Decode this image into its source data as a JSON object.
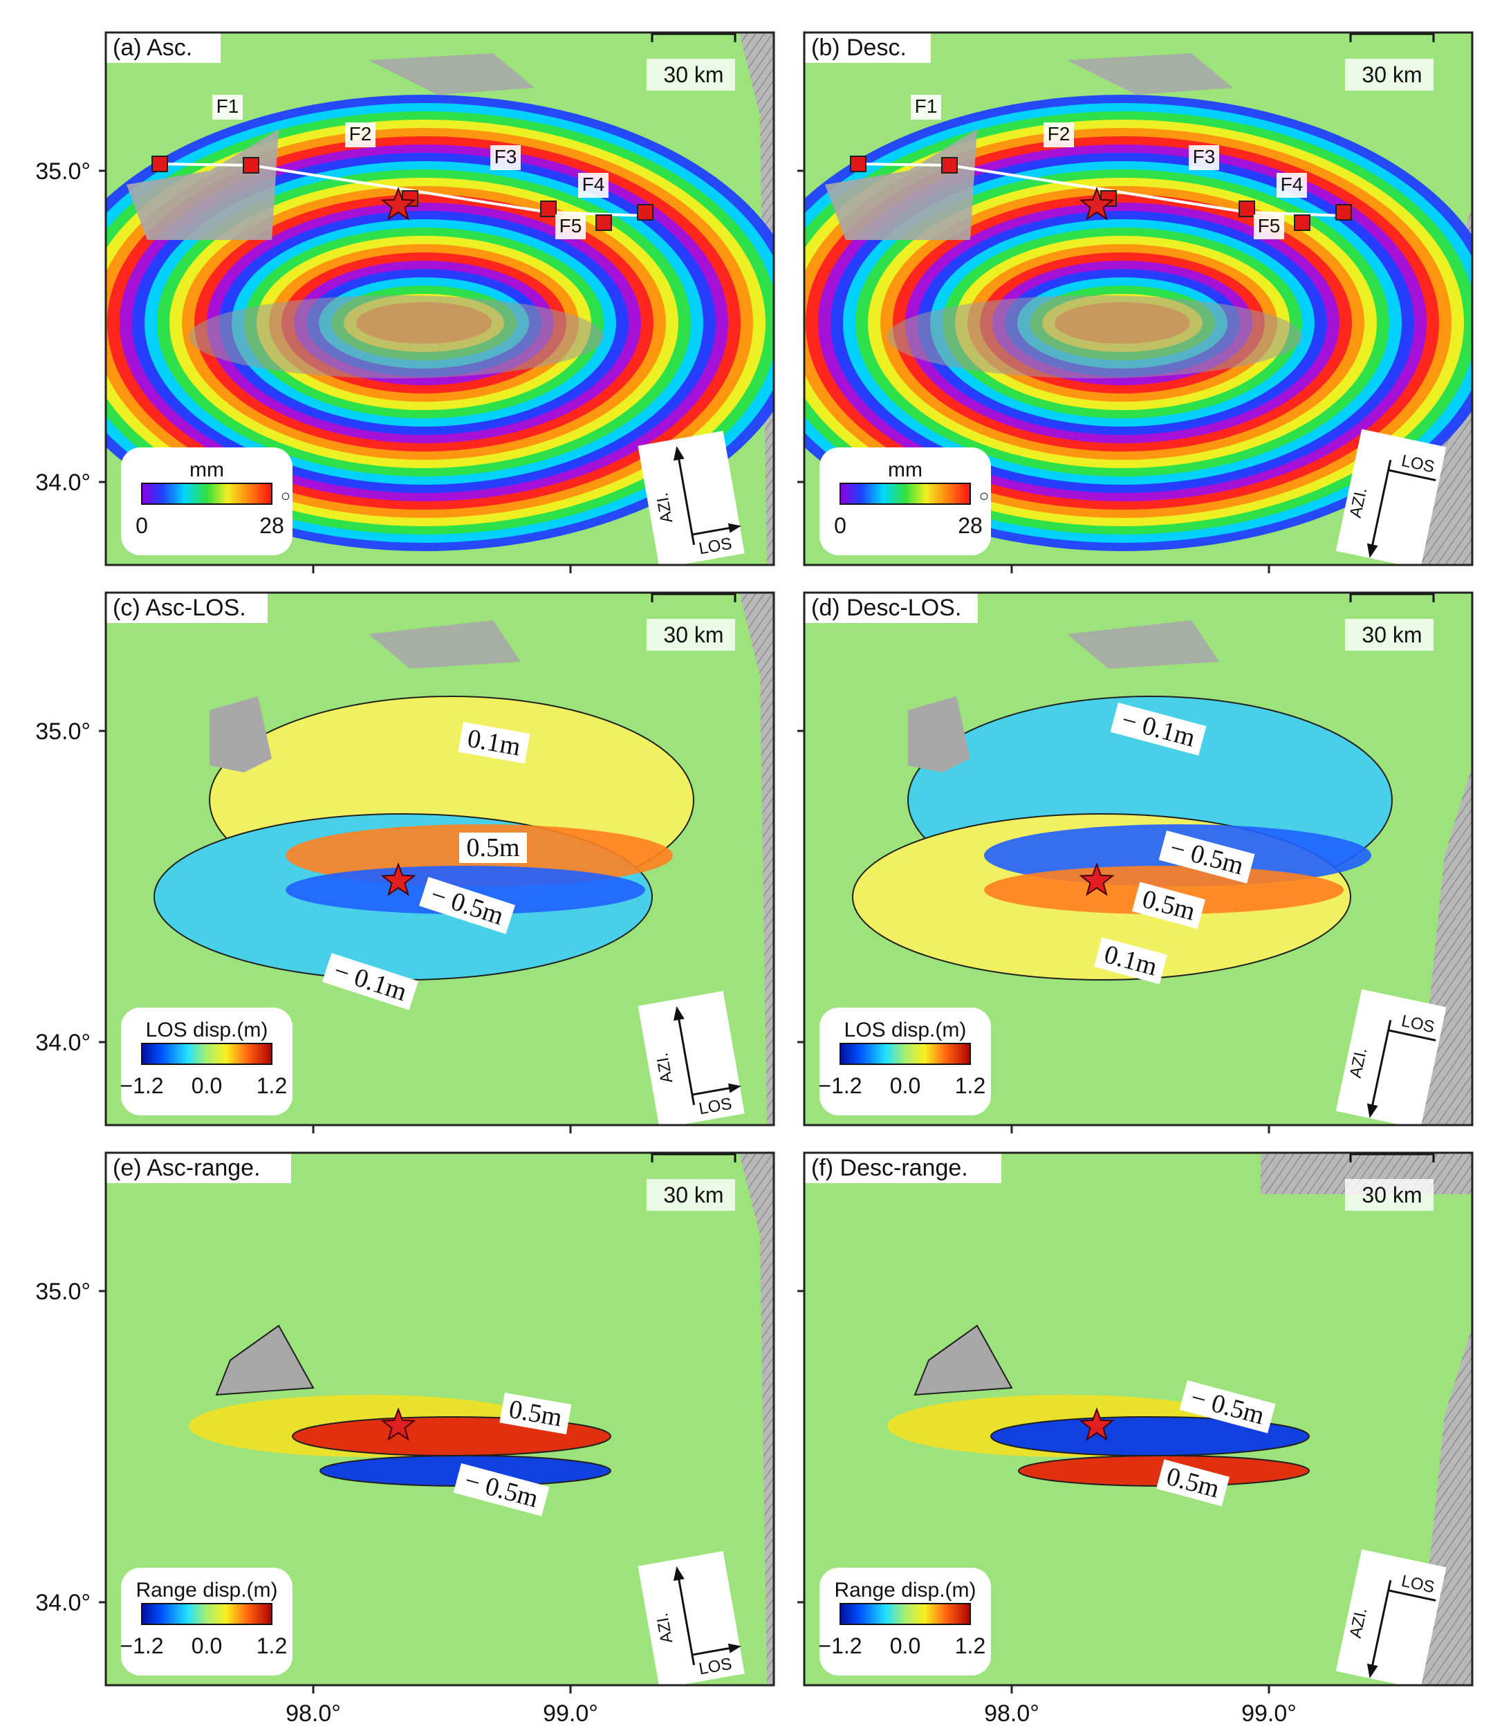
{
  "scale_label": "30 km",
  "fault_labels": [
    "F1",
    "F2",
    "F3",
    "F4",
    "F5"
  ],
  "y_ticks": [
    "35.0°",
    "34.0°"
  ],
  "x_ticks": [
    "98.0°",
    "99.0°"
  ],
  "compass": {
    "azi": "AZI.",
    "los": "LOS"
  },
  "panels": [
    {
      "title": "(a) Asc.",
      "kind": "wrapped",
      "orbit": "asc",
      "colorbar": {
        "title": "mm",
        "min": "0",
        "mid": "",
        "max": "28",
        "cycle_mark": "○"
      }
    },
    {
      "title": "(b) Desc.",
      "kind": "wrapped",
      "orbit": "desc",
      "colorbar": {
        "title": "mm",
        "min": "0",
        "mid": "",
        "max": "28",
        "cycle_mark": "○"
      }
    },
    {
      "title": "(c) Asc-LOS.",
      "kind": "los",
      "orbit": "asc",
      "colorbar": {
        "title": "LOS disp.(m)",
        "min": "−1.2",
        "mid": "0.0",
        "max": "1.2",
        "cycle_mark": ""
      },
      "contour_labels": [
        "0.1m",
        "0.5m",
        "− 0.5m",
        "− 0.1m"
      ]
    },
    {
      "title": "(d) Desc-LOS.",
      "kind": "los",
      "orbit": "desc",
      "colorbar": {
        "title": "LOS disp.(m)",
        "min": "−1.2",
        "mid": "0.0",
        "max": "1.2",
        "cycle_mark": ""
      },
      "contour_labels": [
        "− 0.1m",
        "− 0.5m",
        "0.5m",
        "0.1m"
      ]
    },
    {
      "title": "(e) Asc-range.",
      "kind": "range",
      "orbit": "asc",
      "colorbar": {
        "title": "Range disp.(m)",
        "min": "−1.2",
        "mid": "0.0",
        "max": "1.2",
        "cycle_mark": ""
      },
      "contour_labels": [
        "0.5m",
        "− 0.5m"
      ]
    },
    {
      "title": "(f) Desc-range.",
      "kind": "range",
      "orbit": "desc",
      "colorbar": {
        "title": "Range disp.(m)",
        "min": "−1.2",
        "mid": "0.0",
        "max": "1.2",
        "cycle_mark": ""
      },
      "contour_labels": [
        "− 0.5m",
        "0.5m"
      ]
    }
  ],
  "colors": {
    "background_green": "#9be37a",
    "land_gray": "#a8a8a8",
    "fault_marker": "#e01818",
    "star": "#e02020",
    "fault_trace": "#ffffff"
  }
}
